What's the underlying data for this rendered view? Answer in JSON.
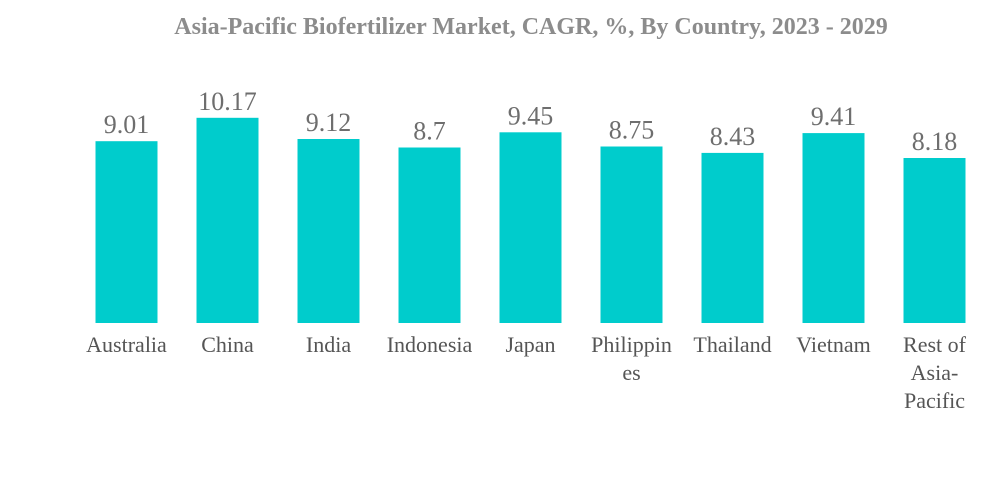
{
  "chart_data": {
    "type": "bar",
    "title": "Asia-Pacific Biofertilizer Market, CAGR, %, By Country, 2023 - 2029",
    "xlabel": "",
    "ylabel": "",
    "categories": [
      [
        "Australia"
      ],
      [
        "China"
      ],
      [
        "India"
      ],
      [
        "Indonesia"
      ],
      [
        "Japan"
      ],
      [
        "Philippin",
        "es"
      ],
      [
        "Thailand"
      ],
      [
        "Vietnam"
      ],
      [
        "Rest of",
        "Asia-",
        "Pacific"
      ]
    ],
    "values": [
      9.01,
      10.17,
      9.12,
      8.7,
      9.45,
      8.75,
      8.43,
      9.41,
      8.18
    ],
    "value_labels": [
      "9.01",
      "10.17",
      "9.12",
      "8.7",
      "9.45",
      "8.75",
      "8.43",
      "9.41",
      "8.18"
    ],
    "ylim": [
      0,
      11.3
    ],
    "grid": false,
    "bar_color": "#00cccc",
    "value_label_color": "#6e6e6e",
    "category_label_color": "#555555",
    "title_color": "#8c8c8c"
  }
}
